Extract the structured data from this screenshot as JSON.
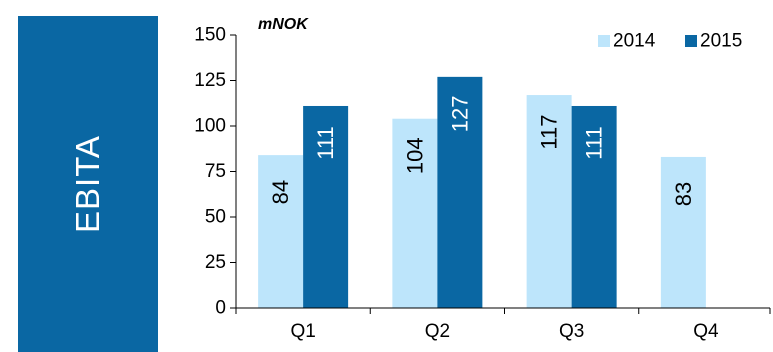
{
  "panel": {
    "label": "EBITA",
    "color": "#0a67a3"
  },
  "chart_data": {
    "type": "bar",
    "unit_label": "mNOK",
    "categories": [
      "Q1",
      "Q2",
      "Q3",
      "Q4"
    ],
    "series": [
      {
        "name": "2014",
        "color": "#bde5fb",
        "values": [
          84,
          104,
          117,
          83
        ]
      },
      {
        "name": "2015",
        "color": "#0a67a3",
        "values": [
          111,
          127,
          111,
          null
        ]
      }
    ],
    "ylim": [
      0,
      150
    ],
    "yticks": [
      0,
      25,
      50,
      75,
      100,
      125,
      150
    ],
    "grid": false,
    "legend": "top-right",
    "data_labels": "inside-rotated"
  }
}
